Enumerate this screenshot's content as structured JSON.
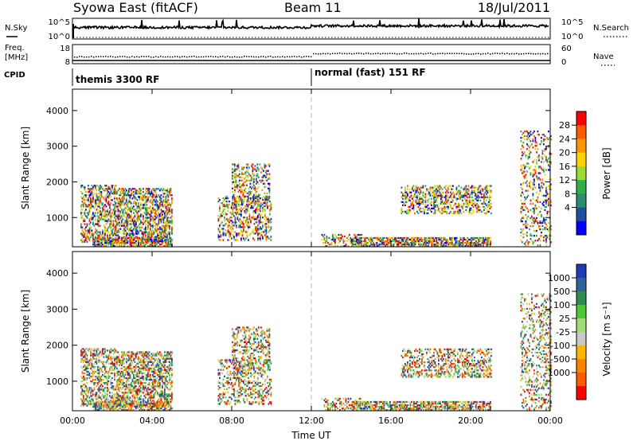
{
  "header": {
    "station": "Syowa East (fitACF)",
    "beam": "Beam 11",
    "date": "18/Jul/2011"
  },
  "nsky_panel": {
    "left_label": "N.Sky",
    "left_ticks": [
      "10^5",
      "10^0"
    ],
    "right_label": "N.Search",
    "right_ticks": [
      "10^5",
      "10^0"
    ]
  },
  "freq_panel": {
    "left_label_1": "Freq.",
    "left_label_2": "[MHz]",
    "left_ticks": [
      "18",
      "8"
    ],
    "right_label": "Nave",
    "right_ticks": [
      "60",
      "0"
    ]
  },
  "cpid_panel": {
    "label": "CPID",
    "modes": [
      "themis 3300 RF",
      "normal (fast) 151 RF"
    ]
  },
  "chart_data": [
    {
      "type": "heatmap",
      "parameter": "power",
      "ylabel": "Slant Range [km]",
      "y_ticks": [
        "1000",
        "2000",
        "3000",
        "4000"
      ],
      "ylim": [
        180,
        4600
      ],
      "x_ticks": [
        "00:00",
        "04:00",
        "08:00",
        "12:00",
        "16:00",
        "20:00",
        "00:00"
      ],
      "xlim_hours": [
        0,
        24
      ],
      "colorbar_label": "Power [dB]",
      "colorbar_ticks": [
        "28",
        "24",
        "20",
        "16",
        "12",
        "8",
        "4"
      ],
      "colorbar_colors": [
        "#ff0000",
        "#ff5a00",
        "#ff9600",
        "#ffd200",
        "#9bdc32",
        "#2eaf4a",
        "#2e8c6e",
        "#1e50a0",
        "#0000ff"
      ],
      "scatter_regions": [
        {
          "t": [
            0.4,
            2.2
          ],
          "r": [
            300,
            1900
          ],
          "d": 0.45
        },
        {
          "t": [
            2.2,
            5.0
          ],
          "r": [
            300,
            1800
          ],
          "d": 0.55
        },
        {
          "t": [
            1.0,
            5.0
          ],
          "r": [
            180,
            450
          ],
          "d": 0.7
        },
        {
          "t": [
            7.3,
            10.0
          ],
          "r": [
            350,
            1600
          ],
          "d": 0.35
        },
        {
          "t": [
            8.0,
            9.9
          ],
          "r": [
            1300,
            2500
          ],
          "d": 0.35
        },
        {
          "t": [
            12.5,
            14.5
          ],
          "r": [
            180,
            500
          ],
          "d": 0.35
        },
        {
          "t": [
            14.0,
            21.0
          ],
          "r": [
            180,
            450
          ],
          "d": 0.7
        },
        {
          "t": [
            16.5,
            21.0
          ],
          "r": [
            1100,
            1900
          ],
          "d": 0.4
        },
        {
          "t": [
            22.5,
            24.0
          ],
          "r": [
            200,
            3400
          ],
          "d": 0.25
        }
      ]
    },
    {
      "type": "heatmap",
      "parameter": "velocity",
      "ylabel": "Slant Range [km]",
      "y_ticks": [
        "1000",
        "2000",
        "3000",
        "4000"
      ],
      "ylim": [
        180,
        4600
      ],
      "x_ticks": [
        "00:00",
        "04:00",
        "08:00",
        "12:00",
        "16:00",
        "20:00",
        "00:00"
      ],
      "xlim_hours": [
        0,
        24
      ],
      "xlabel": "Time UT",
      "colorbar_label": "Velocity [m s⁻¹]",
      "colorbar_ticks": [
        "1000",
        "500",
        "100",
        "25",
        "-25",
        "-100",
        "-500",
        "-1000"
      ],
      "colorbar_colors": [
        "#1e3cb4",
        "#2e6496",
        "#2e8c50",
        "#4bc832",
        "#a0dc78",
        "#c8c8c8",
        "#ffb400",
        "#ff8200",
        "#ff5a00",
        "#ff0000"
      ],
      "scatter_regions": [
        {
          "t": [
            0.4,
            2.2
          ],
          "r": [
            300,
            1900
          ],
          "d": 0.45
        },
        {
          "t": [
            2.2,
            5.0
          ],
          "r": [
            300,
            1800
          ],
          "d": 0.55
        },
        {
          "t": [
            1.0,
            5.0
          ],
          "r": [
            180,
            450
          ],
          "d": 0.7
        },
        {
          "t": [
            7.3,
            10.0
          ],
          "r": [
            350,
            1600
          ],
          "d": 0.35
        },
        {
          "t": [
            8.0,
            9.9
          ],
          "r": [
            1300,
            2500
          ],
          "d": 0.35
        },
        {
          "t": [
            12.5,
            14.5
          ],
          "r": [
            180,
            500
          ],
          "d": 0.35
        },
        {
          "t": [
            14.0,
            21.0
          ],
          "r": [
            180,
            450
          ],
          "d": 0.7
        },
        {
          "t": [
            16.5,
            21.0
          ],
          "r": [
            1100,
            1900
          ],
          "d": 0.4
        },
        {
          "t": [
            22.5,
            24.0
          ],
          "r": [
            200,
            3400
          ],
          "d": 0.25
        }
      ]
    }
  ]
}
